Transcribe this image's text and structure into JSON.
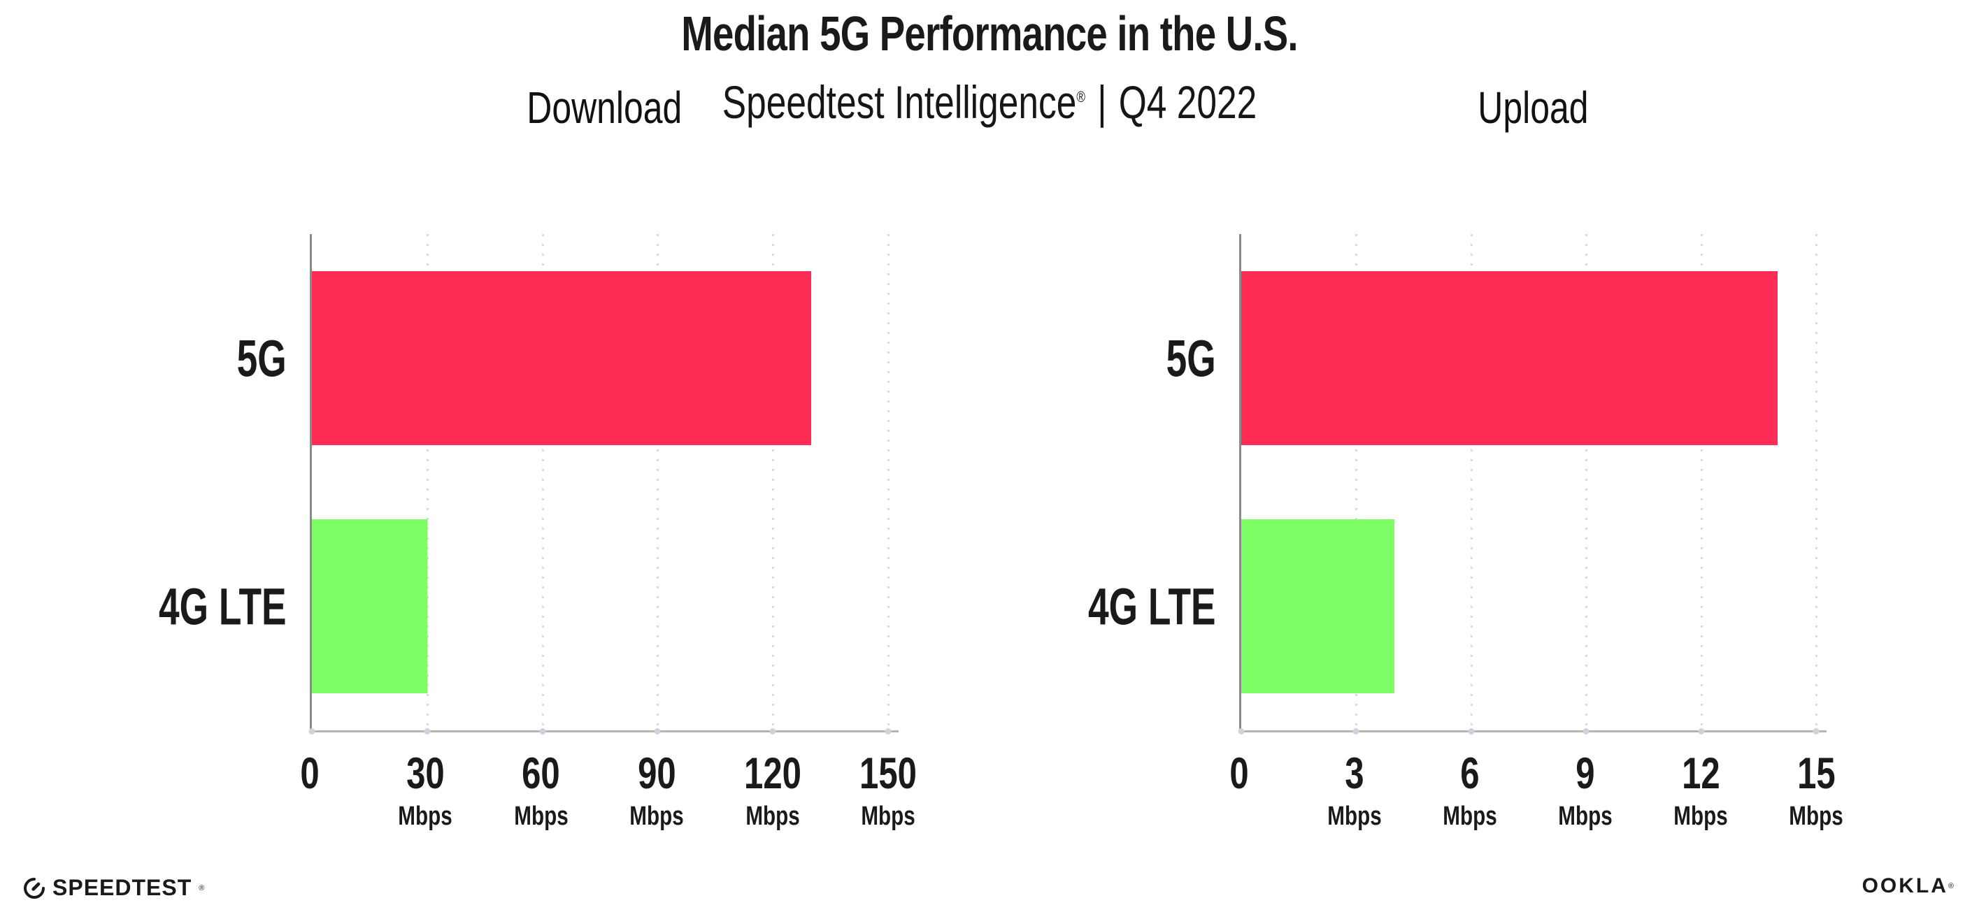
{
  "header": {
    "title": "Median 5G Performance in the U.S.",
    "subtitle_brand": "Speedtest Intelligence",
    "subtitle_reg": "®",
    "subtitle_separator": "|",
    "subtitle_period": "Q4 2022"
  },
  "chart_data": [
    {
      "type": "bar",
      "orientation": "horizontal",
      "title": "Download",
      "categories": [
        "5G",
        "4G LTE"
      ],
      "values": [
        130,
        30
      ],
      "unit": "Mbps",
      "xlim": [
        0,
        150
      ],
      "xticks": [
        0,
        30,
        60,
        90,
        120,
        150
      ],
      "bar_colors": [
        "#FF2D55",
        "#7FFF66"
      ],
      "grid": "vertical-dotted",
      "legend": "none"
    },
    {
      "type": "bar",
      "orientation": "horizontal",
      "title": "Upload",
      "categories": [
        "5G",
        "4G LTE"
      ],
      "values": [
        14,
        4
      ],
      "unit": "Mbps",
      "xlim": [
        0,
        15
      ],
      "xticks": [
        0,
        3,
        6,
        9,
        12,
        15
      ],
      "bar_colors": [
        "#FF2D55",
        "#7FFF66"
      ],
      "grid": "vertical-dotted",
      "legend": "none"
    }
  ],
  "footer": {
    "speedtest_wordmark": "SPEEDTEST",
    "speedtest_reg": "®",
    "ookla_wordmark": "OOKLA",
    "ookla_reg": "®"
  },
  "colors": {
    "bar_5g": "#FF2D55",
    "bar_4g_lte": "#7FFF66",
    "text": "#1A1A1A",
    "axis_left": "#8A8A8A",
    "axis_bottom": "#B5B5B5",
    "gridline": "#D9D9E2"
  }
}
